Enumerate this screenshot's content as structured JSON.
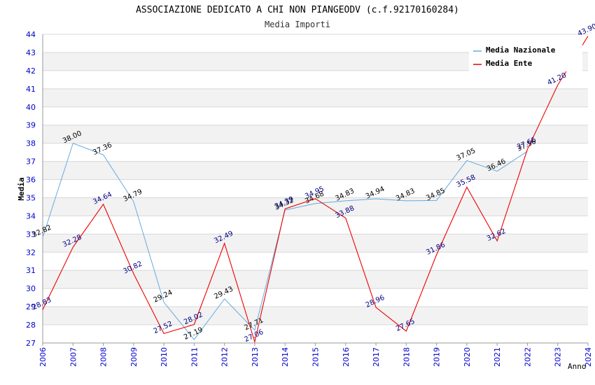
{
  "chart_data": {
    "type": "line",
    "title": "ASSOCIAZIONE DEDICATO A CHI NON PIANGEODV (c.f.92170160284)",
    "subtitle": "Media Importi",
    "xlabel": "Anno",
    "ylabel": "Media",
    "ylim": [
      27,
      44
    ],
    "yticks": [
      27,
      28,
      29,
      30,
      31,
      32,
      33,
      34,
      35,
      36,
      37,
      38,
      39,
      40,
      41,
      42,
      43,
      44
    ],
    "grid": true,
    "legend_position": "top-right",
    "x": [
      "2006",
      "2007",
      "2008",
      "2009",
      "2010",
      "2011",
      "2012",
      "2013",
      "2014",
      "2015",
      "2016",
      "2017",
      "2018",
      "2019",
      "2020",
      "2021",
      "2022",
      "2023",
      "2024"
    ],
    "series": [
      {
        "name": "Media Nazionale",
        "color": "#66aadd",
        "label_color": "#000000",
        "values": [
          32.82,
          38.0,
          37.36,
          34.79,
          29.24,
          27.19,
          29.43,
          27.71,
          34.32,
          34.68,
          34.83,
          34.94,
          34.83,
          34.85,
          37.05,
          36.46,
          37.56,
          null,
          null
        ],
        "labels": [
          "32.82",
          "38.00",
          "37.36",
          "34.79",
          "29.24",
          "27.19",
          "29.43",
          "27.71",
          "34.32",
          "34.68",
          "34.83",
          "34.94",
          "34.83",
          "34.85",
          "37.05",
          "36.46",
          "37.56",
          "",
          ""
        ]
      },
      {
        "name": "Media Ente",
        "color": "#ee0000",
        "label_color": "#000080",
        "values": [
          28.83,
          32.28,
          34.64,
          30.82,
          27.52,
          28.02,
          32.49,
          27.06,
          34.39,
          34.95,
          33.88,
          28.96,
          27.65,
          31.86,
          35.58,
          32.62,
          37.66,
          41.2,
          43.9
        ],
        "labels": [
          "28.83",
          "32.28",
          "34.64",
          "30.82",
          "27.52",
          "28.02",
          "32.49",
          "27.06",
          "34.39",
          "34.95",
          "33.88",
          "28.96",
          "27.65",
          "31.86",
          "35.58",
          "32.62",
          "37.66",
          "41.20",
          "43.90"
        ]
      }
    ]
  }
}
